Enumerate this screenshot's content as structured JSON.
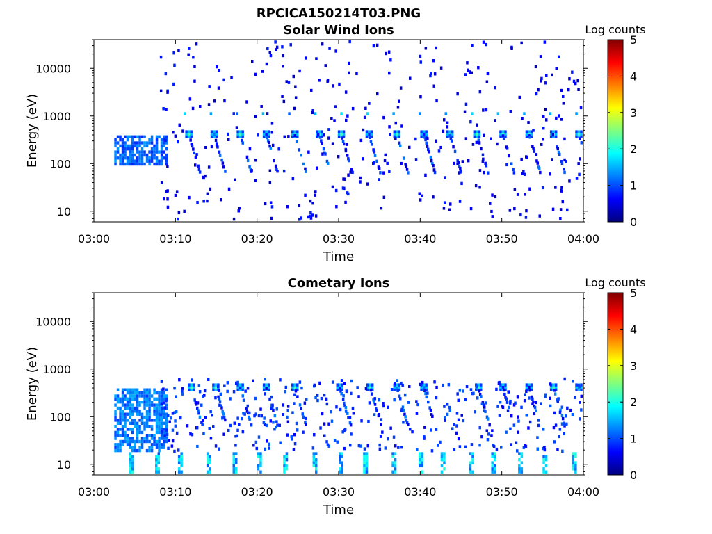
{
  "figure": {
    "title": "RPCICA150214T03.PNG"
  },
  "colors": {
    "colormap": [
      "#00007f",
      "#0000ff",
      "#007fff",
      "#00ffff",
      "#7fff7f",
      "#ffff00",
      "#ff7f00",
      "#ff0000",
      "#7f0000"
    ],
    "axis": "#000000",
    "background": "#ffffff"
  },
  "chart_data": [
    {
      "type": "heatmap",
      "title": "Solar Wind Ions",
      "xlabel": "Time",
      "ylabel": "Energy (eV)",
      "x_ticks": [
        "03:00",
        "03:10",
        "03:20",
        "03:30",
        "03:40",
        "03:50",
        "04:00"
      ],
      "x_range_minutes": [
        0,
        60
      ],
      "y_scale": "log",
      "y_ticks": [
        10,
        100,
        1000,
        10000
      ],
      "y_tick_labels": [
        "10",
        "100",
        "1000",
        "10000"
      ],
      "y_range": [
        6,
        40000
      ],
      "colorbar": {
        "label": "Log counts",
        "range": [
          0,
          5
        ],
        "ticks": [
          "0",
          "1",
          "2",
          "3",
          "4",
          "5"
        ]
      },
      "features": [
        {
          "name": "dense low-energy block",
          "t_start_min": 2.5,
          "t_end_min": 9,
          "e_min_ev": 100,
          "e_max_ev": 450,
          "log_counts": 0.8
        },
        {
          "name": "periodic solar-wind peak",
          "times_min": [
            11.5,
            14.6,
            17.8,
            21.0,
            24.5,
            27.5,
            30.2,
            33.6,
            37.0,
            40.3,
            43.5,
            46.8,
            50.0,
            53.2,
            56.2,
            59.3
          ],
          "energy_ev": 450,
          "log_counts_max": 2.2
        },
        {
          "name": "secondary peak near 1 keV",
          "energy_ev": 1200,
          "log_counts_max": 1.8
        },
        {
          "name": "scattered background counts",
          "e_min_ev": 6,
          "e_max_ev": 40000,
          "log_counts": 0.3
        }
      ]
    },
    {
      "type": "heatmap",
      "title": "Cometary Ions",
      "xlabel": "Time",
      "ylabel": "Energy (eV)",
      "x_ticks": [
        "03:00",
        "03:10",
        "03:20",
        "03:30",
        "03:40",
        "03:50",
        "04:00"
      ],
      "x_range_minutes": [
        0,
        60
      ],
      "y_scale": "log",
      "y_ticks": [
        10,
        100,
        1000,
        10000
      ],
      "y_tick_labels": [
        "10",
        "100",
        "1000",
        "10000"
      ],
      "y_range": [
        6,
        40000
      ],
      "colorbar": {
        "label": "Log counts",
        "range": [
          0,
          5
        ],
        "ticks": [
          "0",
          "1",
          "2",
          "3",
          "4",
          "5"
        ]
      },
      "features": [
        {
          "name": "dense low-energy block",
          "t_start_min": 2.5,
          "t_end_min": 9,
          "e_min_ev": 20,
          "e_max_ev": 450,
          "log_counts": 0.9
        },
        {
          "name": "low-energy bursts",
          "times_min": [
            4.3,
            7.5,
            10.3,
            13.8,
            17.0,
            20.0,
            23.2,
            26.8,
            30.0,
            33.0,
            36.5,
            39.8,
            42.5,
            46.0,
            48.7,
            52.0,
            55.0,
            58.6
          ],
          "e_min_ev": 6,
          "e_max_ev": 20,
          "log_counts_max": 2.1
        },
        {
          "name": "periodic high-energy peak",
          "times_min": [
            11.8,
            14.8,
            17.8,
            21.0,
            24.5,
            30.0,
            33.7,
            37.0,
            40.3,
            47.0,
            50.0,
            53.2,
            56.2,
            59.3
          ],
          "energy_ev": 450,
          "log_counts_max": 2.3
        },
        {
          "name": "dispersed tails",
          "e_min_ev": 20,
          "e_max_ev": 700,
          "log_counts": 0.6
        }
      ]
    }
  ]
}
